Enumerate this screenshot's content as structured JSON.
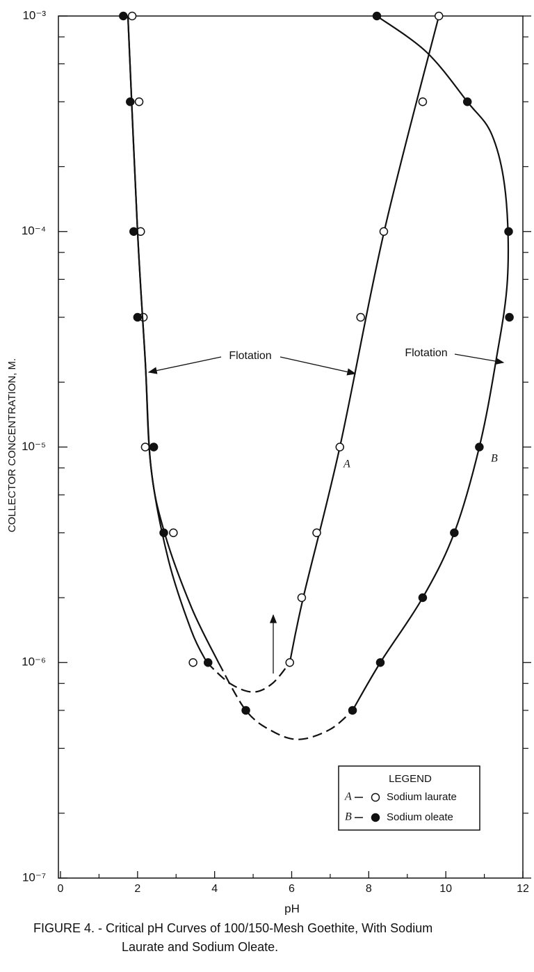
{
  "chart_data": {
    "type": "scatter",
    "y_label": "COLLECTOR CONCENTRATION, M.",
    "x_label": "pH",
    "caption": [
      "FIGURE 4. - Critical pH Curves of 100/150-Mesh Goethite, With Sodium",
      "Laurate and Sodium Oleate."
    ],
    "legend_title": "LEGEND",
    "xlim": [
      0,
      12
    ],
    "xticks": [
      0,
      2,
      4,
      6,
      8,
      10,
      12
    ],
    "xminorticks": [
      1,
      3,
      5,
      7,
      9,
      11
    ],
    "ylim": [
      1e-07,
      0.001
    ],
    "log_y": true,
    "yticks": [
      {
        "value": 1e-07,
        "label": "10⁻⁷"
      },
      {
        "value": 1e-06,
        "label": "10⁻⁶"
      },
      {
        "value": 1e-05,
        "label": "10⁻⁵"
      },
      {
        "value": 0.0001,
        "label": "10⁻⁴"
      },
      {
        "value": 0.001,
        "label": "10⁻³"
      }
    ],
    "yminorticks": [
      2e-07,
      4e-07,
      6e-07,
      8e-07,
      2e-06,
      4e-06,
      6e-06,
      8e-06,
      2e-05,
      4e-05,
      6e-05,
      8e-05,
      0.0002,
      0.0004,
      0.0006,
      0.0008
    ],
    "annotations": [
      "Flotation",
      "Flotation"
    ],
    "series": [
      {
        "name": "Sodium laurate",
        "label": "A",
        "marker": "open",
        "color": "#111111",
        "x": [
          1.86,
          2.04,
          2.08,
          2.15,
          2.2,
          2.93,
          3.44,
          5.95,
          6.26,
          6.65,
          7.25,
          7.79,
          8.39,
          9.4,
          9.82
        ],
        "values": [
          0.001,
          0.0004,
          0.0001,
          4e-05,
          1e-05,
          4e-06,
          1e-06,
          1e-06,
          2e-06,
          4e-06,
          1e-05,
          4e-05,
          0.0001,
          0.0004,
          0.001
        ],
        "curve": [
          {
            "dashed": false,
            "x": [
              1.75,
              2.0,
              2.2,
              2.35,
              2.8,
              3.4,
              3.8
            ],
            "y": [
              0.001,
              0.0001,
              2.5e-05,
              8e-06,
              3e-06,
              1.4e-06,
              1e-06
            ]
          },
          {
            "dashed": true,
            "x": [
              3.8,
              4.4,
              5.0,
              5.5,
              5.95
            ],
            "y": [
              1e-06,
              8e-07,
              7.3e-07,
              8e-07,
              1e-06
            ]
          },
          {
            "dashed": false,
            "x": [
              5.95,
              6.3,
              7.25,
              8.4,
              9.82
            ],
            "y": [
              1e-06,
              2e-06,
              1e-05,
              0.0001,
              0.001
            ]
          }
        ]
      },
      {
        "name": "Sodium oleate",
        "label": "B",
        "marker": "filled",
        "color": "#111111",
        "x": [
          1.63,
          1.81,
          1.9,
          2.0,
          2.42,
          2.68,
          3.83,
          4.81,
          7.58,
          8.3,
          9.4,
          10.22,
          10.87,
          11.65,
          11.63,
          10.56,
          8.21
        ],
        "values": [
          0.001,
          0.0004,
          0.0001,
          4e-05,
          1e-05,
          4e-06,
          1e-06,
          6e-07,
          6e-07,
          1e-06,
          2e-06,
          4e-06,
          1e-05,
          4e-05,
          0.0001,
          0.0004,
          0.001
        ],
        "curve": [
          {
            "dashed": false,
            "x": [
              1.75,
              2.0,
              2.2,
              2.35,
              2.7,
              3.4,
              4.1
            ],
            "y": [
              0.001,
              0.0001,
              2.5e-05,
              8e-06,
              4e-06,
              1.8e-06,
              1e-06
            ]
          },
          {
            "dashed": true,
            "x": [
              4.1,
              4.81,
              5.5,
              6.2,
              7.0,
              7.58
            ],
            "y": [
              1e-06,
              6e-07,
              4.8e-07,
              4.4e-07,
              4.9e-07,
              6e-07
            ]
          },
          {
            "dashed": false,
            "x": [
              7.58,
              8.3,
              9.4,
              10.22,
              10.87,
              11.3,
              11.6,
              11.55,
              11.2,
              10.56,
              9.5,
              8.21
            ],
            "y": [
              6e-07,
              1e-06,
              2e-06,
              4e-06,
              1e-05,
              2.5e-05,
              6e-05,
              0.00015,
              0.00028,
              0.0004,
              0.00068,
              0.001
            ]
          }
        ]
      }
    ]
  }
}
